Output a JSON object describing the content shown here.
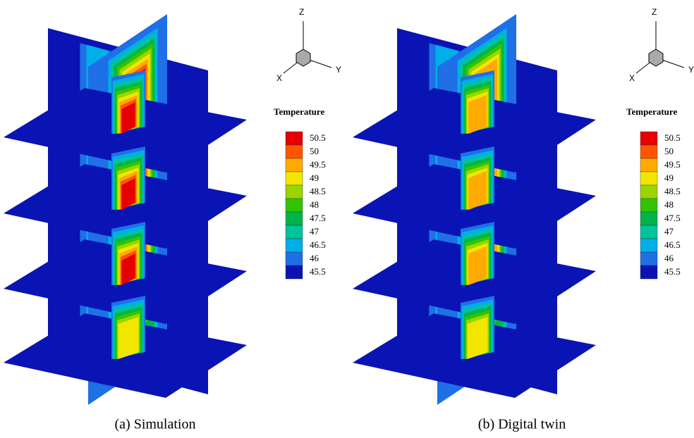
{
  "panels": [
    {
      "caption": "(a) Simulation",
      "triad": {
        "z": "Z",
        "x": "X",
        "y": "Y"
      },
      "legend": {
        "title": "Temperature",
        "levels": [
          50.5,
          50,
          49.5,
          49,
          48.5,
          48,
          47.5,
          47,
          46.5,
          46,
          45.5
        ],
        "colors": [
          "#e60000",
          "#ff5500",
          "#ffaa00",
          "#f2e600",
          "#99d600",
          "#33c400",
          "#00b44a",
          "#00c49a",
          "#00aee8",
          "#1f6fe6",
          "#0a14b4"
        ]
      }
    },
    {
      "caption": "(b) Digital twin",
      "triad": {
        "z": "Z",
        "x": "X",
        "y": "Y"
      },
      "legend": {
        "title": "Temperature",
        "levels": [
          50.5,
          50,
          49.5,
          49,
          48.5,
          48,
          47.5,
          47,
          46.5,
          46,
          45.5
        ],
        "colors": [
          "#e60000",
          "#ff5500",
          "#ffaa00",
          "#f2e600",
          "#99d600",
          "#33c400",
          "#00b44a",
          "#00c49a",
          "#00aee8",
          "#1f6fe6",
          "#0a14b4"
        ]
      }
    }
  ]
}
